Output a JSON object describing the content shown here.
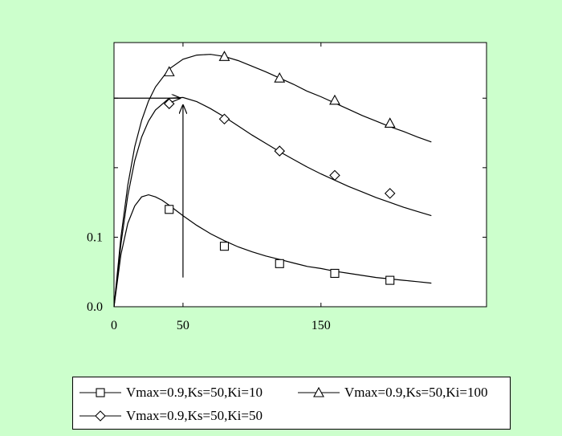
{
  "chart_data": {
    "type": "line",
    "xlim": [
      0,
      270
    ],
    "ylim": [
      0,
      0.38
    ],
    "x_ticks": [
      0,
      50,
      150
    ],
    "x_tick_labels": [
      "0",
      "50",
      "150"
    ],
    "y_ticks": [
      0.0,
      0.1
    ],
    "y_tick_labels": [
      "0.0",
      "0.1"
    ],
    "y_minor_ticks": [
      0.2,
      0.3
    ],
    "grid": false,
    "legend_position": "bottom",
    "series": [
      {
        "name": "Vmax=0.9,Ks=50,Ki=10",
        "marker": "square",
        "x": [
          0,
          5,
          10,
          15,
          20,
          25,
          30,
          35,
          40,
          50,
          60,
          70,
          80,
          90,
          100,
          110,
          120,
          130,
          140,
          150,
          160,
          170,
          180,
          190,
          200,
          210,
          220,
          230
        ],
        "y": [
          0.0,
          0.075,
          0.12,
          0.145,
          0.158,
          0.161,
          0.158,
          0.153,
          0.146,
          0.131,
          0.117,
          0.105,
          0.095,
          0.086,
          0.079,
          0.073,
          0.068,
          0.063,
          0.058,
          0.055,
          0.051,
          0.048,
          0.045,
          0.042,
          0.04,
          0.038,
          0.036,
          0.034
        ],
        "markers_x": [
          40,
          80,
          120,
          160,
          200
        ],
        "markers_y": [
          0.14,
          0.087,
          0.062,
          0.048,
          0.038
        ]
      },
      {
        "name": "Vmax=0.9,Ks=50,Ki=100",
        "marker": "triangle",
        "x": [
          0,
          5,
          10,
          15,
          20,
          25,
          30,
          40,
          50,
          60,
          70,
          80,
          90,
          100,
          110,
          120,
          130,
          140,
          150,
          160,
          170,
          180,
          190,
          200,
          210,
          220,
          230
        ],
        "y": [
          0.0,
          0.1,
          0.175,
          0.23,
          0.268,
          0.296,
          0.316,
          0.342,
          0.356,
          0.362,
          0.363,
          0.36,
          0.354,
          0.346,
          0.338,
          0.329,
          0.32,
          0.31,
          0.302,
          0.293,
          0.284,
          0.275,
          0.267,
          0.259,
          0.252,
          0.244,
          0.237
        ],
        "markers_x": [
          40,
          80,
          120,
          160,
          200
        ],
        "markers_y": [
          0.338,
          0.36,
          0.329,
          0.297,
          0.264
        ]
      },
      {
        "name": "Vmax=0.9,Ks=50,Ki=50",
        "marker": "diamond",
        "x": [
          0,
          5,
          10,
          15,
          20,
          25,
          30,
          40,
          50,
          60,
          70,
          80,
          90,
          100,
          110,
          120,
          130,
          140,
          150,
          160,
          170,
          180,
          190,
          200,
          210,
          220,
          230
        ],
        "y": [
          0.0,
          0.09,
          0.16,
          0.21,
          0.244,
          0.267,
          0.283,
          0.3,
          0.301,
          0.295,
          0.285,
          0.273,
          0.26,
          0.247,
          0.235,
          0.223,
          0.212,
          0.201,
          0.191,
          0.182,
          0.173,
          0.165,
          0.157,
          0.15,
          0.143,
          0.137,
          0.131
        ],
        "markers_x": [
          40,
          80,
          120,
          160,
          200
        ],
        "markers_y": [
          0.292,
          0.27,
          0.224,
          0.189,
          0.163
        ]
      }
    ],
    "annotations": [
      {
        "type": "arrow",
        "from": [
          0,
          0.3
        ],
        "to": [
          48,
          0.3
        ]
      },
      {
        "type": "arrow",
        "from": [
          50,
          0.042
        ],
        "to": [
          50,
          0.29
        ]
      }
    ]
  }
}
